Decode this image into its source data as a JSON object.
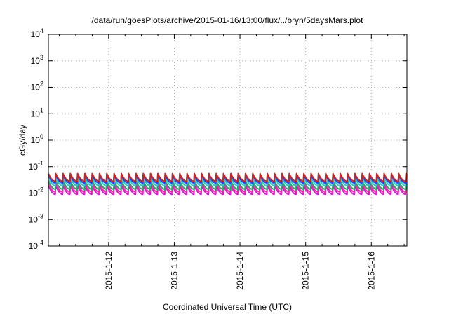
{
  "chart_data": {
    "type": "line",
    "title": "/data/run/goesPlots/archive/2015-01-16/13:00/flux/../bryn/5daysMars.plot",
    "xlabel": "Coordinated Universal Time (UTC)",
    "ylabel": "cGy/day",
    "y_scale": "log",
    "ylim": [
      0.0001,
      10000
    ],
    "xlim": [
      "2015-01-11 02:00",
      "2015-01-16 13:00"
    ],
    "x_ticks": [
      "2015-1-12",
      "2015-1-13",
      "2015-1-14",
      "2015-1-15",
      "2015-1-16"
    ],
    "y_ticks": [
      {
        "base": "10",
        "exp": "4"
      },
      {
        "base": "10",
        "exp": "3"
      },
      {
        "base": "10",
        "exp": "2"
      },
      {
        "base": "10",
        "exp": "1"
      },
      {
        "base": "10",
        "exp": "0"
      },
      {
        "base": "10",
        "exp": "-1"
      },
      {
        "base": "10",
        "exp": "-2"
      },
      {
        "base": "10",
        "exp": "-3"
      },
      {
        "base": "10",
        "exp": "-4"
      }
    ],
    "grid": true,
    "pattern": "sawtooth, about 9 cycles per day",
    "cycles_per_day": 9,
    "series": [
      {
        "color": "#cc22cc",
        "peak": 0.02,
        "trough": 0.009
      },
      {
        "color": "#ff22aa",
        "peak": 0.025,
        "trough": 0.011
      },
      {
        "color": "#22aa66",
        "peak": 0.03,
        "trough": 0.014
      },
      {
        "color": "#22cccc",
        "peak": 0.042,
        "trough": 0.019
      },
      {
        "color": "#2244ff",
        "peak": 0.05,
        "trough": 0.024
      },
      {
        "color": "#cc2222",
        "peak": 0.055,
        "trough": 0.028
      }
    ]
  }
}
